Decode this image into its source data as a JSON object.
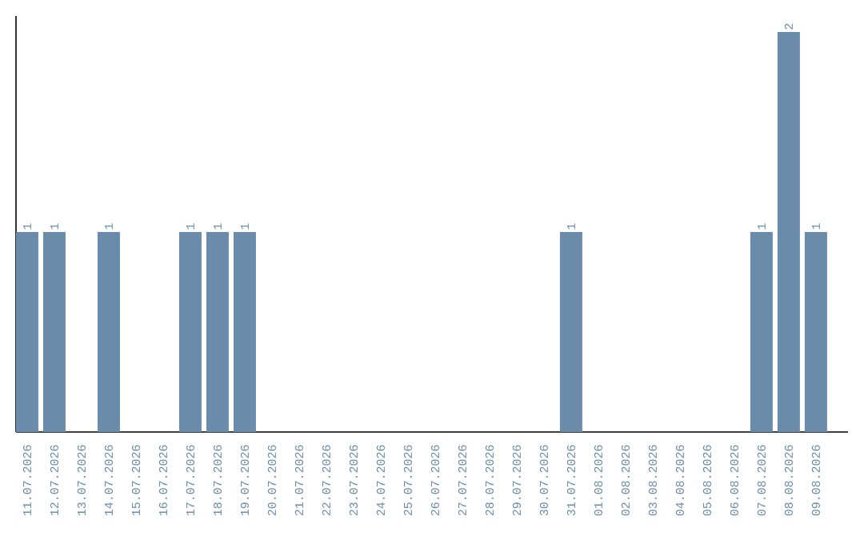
{
  "chart_data": {
    "type": "bar",
    "categories": [
      "11.07.2026",
      "12.07.2026",
      "13.07.2026",
      "14.07.2026",
      "15.07.2026",
      "16.07.2026",
      "17.07.2026",
      "18.07.2026",
      "19.07.2026",
      "20.07.2026",
      "21.07.2026",
      "22.07.2026",
      "23.07.2026",
      "24.07.2026",
      "25.07.2026",
      "26.07.2026",
      "27.07.2026",
      "28.07.2026",
      "29.07.2026",
      "30.07.2026",
      "31.07.2026",
      "01.08.2026",
      "02.08.2026",
      "03.08.2026",
      "04.08.2026",
      "05.08.2026",
      "06.08.2026",
      "07.08.2026",
      "08.08.2026",
      "09.08.2026"
    ],
    "values": [
      1,
      1,
      0,
      1,
      0,
      0,
      1,
      1,
      1,
      0,
      0,
      0,
      0,
      0,
      0,
      0,
      0,
      0,
      0,
      0,
      1,
      0,
      0,
      0,
      0,
      0,
      0,
      1,
      2,
      1
    ],
    "value_labels": [
      "1",
      "1",
      null,
      "1",
      null,
      null,
      "1",
      "1",
      "1",
      null,
      null,
      null,
      null,
      null,
      null,
      null,
      null,
      null,
      null,
      null,
      "1",
      null,
      null,
      null,
      null,
      null,
      null,
      "1",
      "2",
      "1"
    ],
    "color": "#6a8caa",
    "grid": false,
    "tick_labels": "x"
  }
}
